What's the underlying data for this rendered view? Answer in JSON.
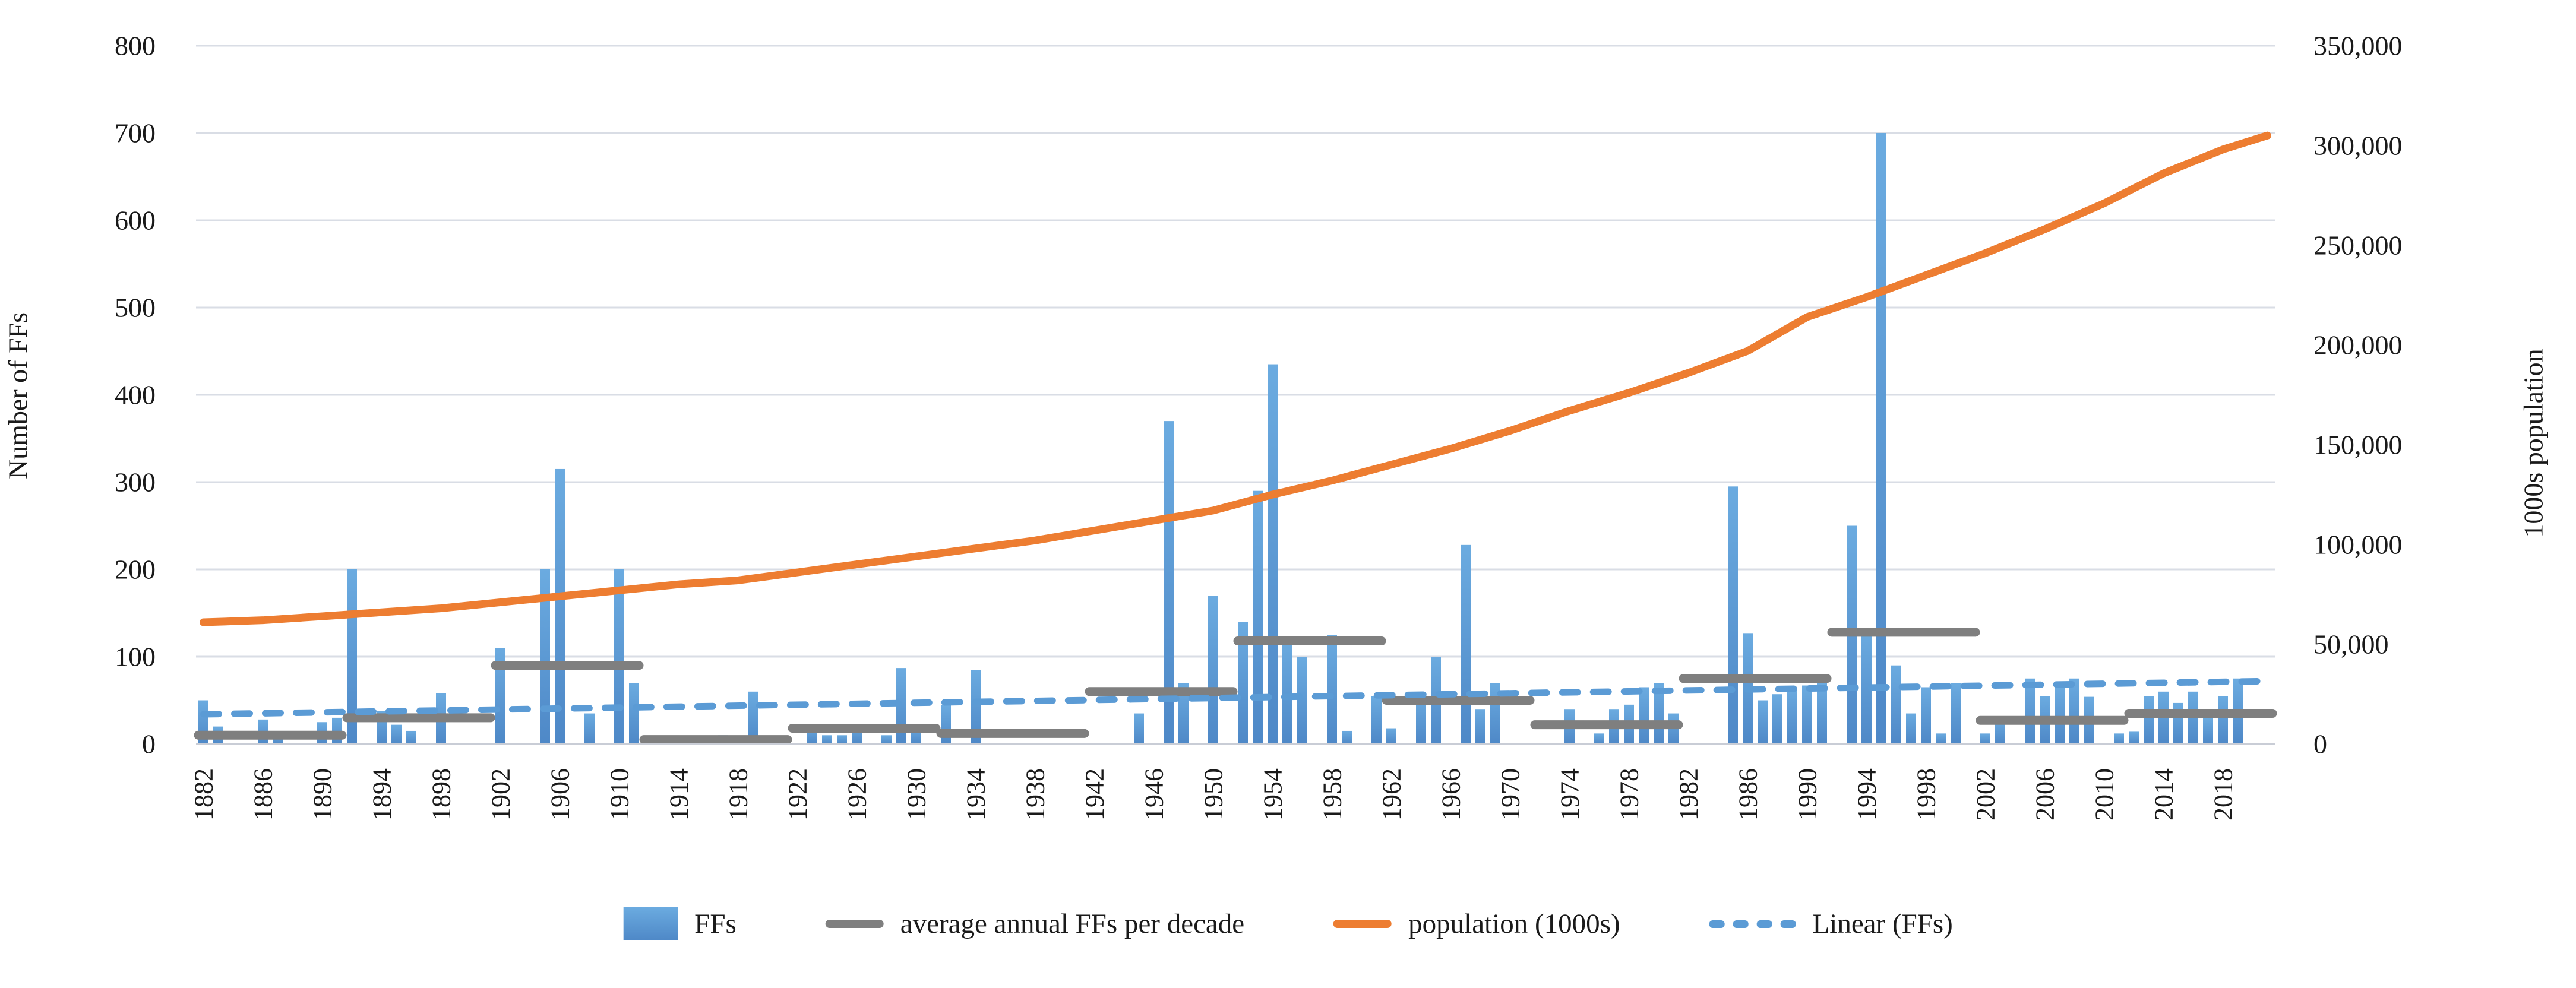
{
  "chart_data": {
    "type": "bar",
    "subtype": "combo-bar-line-dual-axis",
    "title": "",
    "xlabel": "",
    "ylabel_left": "Number of FFs",
    "ylabel_right": "1000s population",
    "grid": true,
    "legend_position": "bottom",
    "left_axis": {
      "min": 0,
      "max": 800,
      "step": 100,
      "ticks": [
        "800",
        "700",
        "600",
        "500",
        "400",
        "300",
        "200",
        "100",
        "0"
      ]
    },
    "right_axis": {
      "min": 0,
      "max": 350000,
      "step": 50000,
      "ticks": [
        "350,000",
        "300,000",
        "250,000",
        "200,000",
        "150,000",
        "100,000",
        "50,000",
        "0"
      ]
    },
    "x_axis": {
      "first_year": 1882,
      "last_year": 2021,
      "label_every": 4,
      "tick_labels": [
        "1882",
        "1886",
        "1890",
        "1894",
        "1898",
        "1902",
        "1906",
        "1910",
        "1914",
        "1918",
        "1922",
        "1926",
        "1930",
        "1934",
        "1938",
        "1942",
        "1946",
        "1950",
        "1954",
        "1958",
        "1962",
        "1966",
        "1970",
        "1974",
        "1978",
        "1982",
        "1986",
        "1990",
        "1994",
        "1998",
        "2002",
        "2006",
        "2010",
        "2014",
        "2018"
      ]
    },
    "series": {
      "ffs_bars": [
        [
          1882,
          50
        ],
        [
          1883,
          20
        ],
        [
          1886,
          28
        ],
        [
          1887,
          12
        ],
        [
          1890,
          25
        ],
        [
          1891,
          30
        ],
        [
          1892,
          200
        ],
        [
          1894,
          38
        ],
        [
          1895,
          22
        ],
        [
          1896,
          15
        ],
        [
          1898,
          58
        ],
        [
          1902,
          110
        ],
        [
          1905,
          200
        ],
        [
          1906,
          315
        ],
        [
          1908,
          35
        ],
        [
          1910,
          200
        ],
        [
          1911,
          70
        ],
        [
          1914,
          6
        ],
        [
          1917,
          10
        ],
        [
          1919,
          60
        ],
        [
          1923,
          20
        ],
        [
          1924,
          10
        ],
        [
          1925,
          10
        ],
        [
          1926,
          22
        ],
        [
          1928,
          10
        ],
        [
          1929,
          87
        ],
        [
          1930,
          20
        ],
        [
          1932,
          45
        ],
        [
          1934,
          85
        ],
        [
          1945,
          35
        ],
        [
          1947,
          370
        ],
        [
          1948,
          70
        ],
        [
          1950,
          170
        ],
        [
          1952,
          140
        ],
        [
          1953,
          290
        ],
        [
          1954,
          435
        ],
        [
          1955,
          120
        ],
        [
          1956,
          100
        ],
        [
          1958,
          125
        ],
        [
          1959,
          15
        ],
        [
          1961,
          55
        ],
        [
          1962,
          18
        ],
        [
          1964,
          55
        ],
        [
          1965,
          100
        ],
        [
          1967,
          228
        ],
        [
          1968,
          40
        ],
        [
          1969,
          70
        ],
        [
          1974,
          40
        ],
        [
          1976,
          12
        ],
        [
          1977,
          40
        ],
        [
          1978,
          45
        ],
        [
          1979,
          65
        ],
        [
          1980,
          70
        ],
        [
          1981,
          35
        ],
        [
          1985,
          295
        ],
        [
          1986,
          127
        ],
        [
          1987,
          50
        ],
        [
          1988,
          57
        ],
        [
          1989,
          65
        ],
        [
          1990,
          67
        ],
        [
          1991,
          70
        ],
        [
          1993,
          250
        ],
        [
          1994,
          130
        ],
        [
          1995,
          700
        ],
        [
          1996,
          90
        ],
        [
          1997,
          35
        ],
        [
          1998,
          65
        ],
        [
          1999,
          12
        ],
        [
          2000,
          70
        ],
        [
          2002,
          12
        ],
        [
          2003,
          28
        ],
        [
          2005,
          75
        ],
        [
          2006,
          55
        ],
        [
          2007,
          65
        ],
        [
          2008,
          75
        ],
        [
          2009,
          54
        ],
        [
          2011,
          12
        ],
        [
          2012,
          14
        ],
        [
          2013,
          55
        ],
        [
          2014,
          60
        ],
        [
          2015,
          47
        ],
        [
          2016,
          60
        ],
        [
          2017,
          30
        ],
        [
          2018,
          55
        ],
        [
          2019,
          75
        ]
      ],
      "decade_averages": [
        {
          "start": 1882,
          "end": 1891,
          "value": 10
        },
        {
          "start": 1892,
          "end": 1901,
          "value": 30
        },
        {
          "start": 1902,
          "end": 1911,
          "value": 90
        },
        {
          "start": 1912,
          "end": 1921,
          "value": 5
        },
        {
          "start": 1922,
          "end": 1931,
          "value": 18
        },
        {
          "start": 1932,
          "end": 1941,
          "value": 12
        },
        {
          "start": 1942,
          "end": 1951,
          "value": 60
        },
        {
          "start": 1952,
          "end": 1961,
          "value": 118
        },
        {
          "start": 1962,
          "end": 1971,
          "value": 50
        },
        {
          "start": 1972,
          "end": 1981,
          "value": 22
        },
        {
          "start": 1982,
          "end": 1991,
          "value": 75
        },
        {
          "start": 1992,
          "end": 2001,
          "value": 128
        },
        {
          "start": 2002,
          "end": 2011,
          "value": 27
        },
        {
          "start": 2012,
          "end": 2021,
          "value": 35
        }
      ],
      "population_1000s": [
        [
          1882,
          61
        ],
        [
          1886,
          62
        ],
        [
          1890,
          64
        ],
        [
          1894,
          66
        ],
        [
          1898,
          68
        ],
        [
          1902,
          71
        ],
        [
          1906,
          74
        ],
        [
          1910,
          77
        ],
        [
          1914,
          80
        ],
        [
          1918,
          82
        ],
        [
          1922,
          86
        ],
        [
          1926,
          90
        ],
        [
          1930,
          94
        ],
        [
          1934,
          98
        ],
        [
          1938,
          102
        ],
        [
          1942,
          107
        ],
        [
          1946,
          112
        ],
        [
          1950,
          117
        ],
        [
          1954,
          125
        ],
        [
          1958,
          132
        ],
        [
          1962,
          140
        ],
        [
          1966,
          148
        ],
        [
          1970,
          157
        ],
        [
          1974,
          167
        ],
        [
          1978,
          176
        ],
        [
          1982,
          186
        ],
        [
          1986,
          197
        ],
        [
          1990,
          214
        ],
        [
          1994,
          224
        ],
        [
          1998,
          235
        ],
        [
          2002,
          246
        ],
        [
          2006,
          258
        ],
        [
          2010,
          271
        ],
        [
          2014,
          286
        ],
        [
          2018,
          298
        ],
        [
          2021,
          305
        ]
      ],
      "linear_trend": {
        "x1": 1882,
        "v1": 34,
        "x2": 2021,
        "v2": 72
      }
    },
    "legend": [
      {
        "label": "FFs",
        "swatch": "bar",
        "color": "#5B9BD5"
      },
      {
        "label": "average annual FFs per decade",
        "swatch": "line",
        "color": "#7F7F7F"
      },
      {
        "label": "population (1000s)",
        "swatch": "line",
        "color": "#ED7D31"
      },
      {
        "label": "Linear (FFs)",
        "swatch": "dashed-line",
        "color": "#5B9BD5"
      }
    ],
    "colors": {
      "bars": "#5B9BD5",
      "decade_line": "#7F7F7F",
      "population_line": "#ED7D31",
      "trend_line": "#5B9BD5",
      "gridline": "#D9DDE5",
      "text": "#1A1A1A"
    }
  }
}
